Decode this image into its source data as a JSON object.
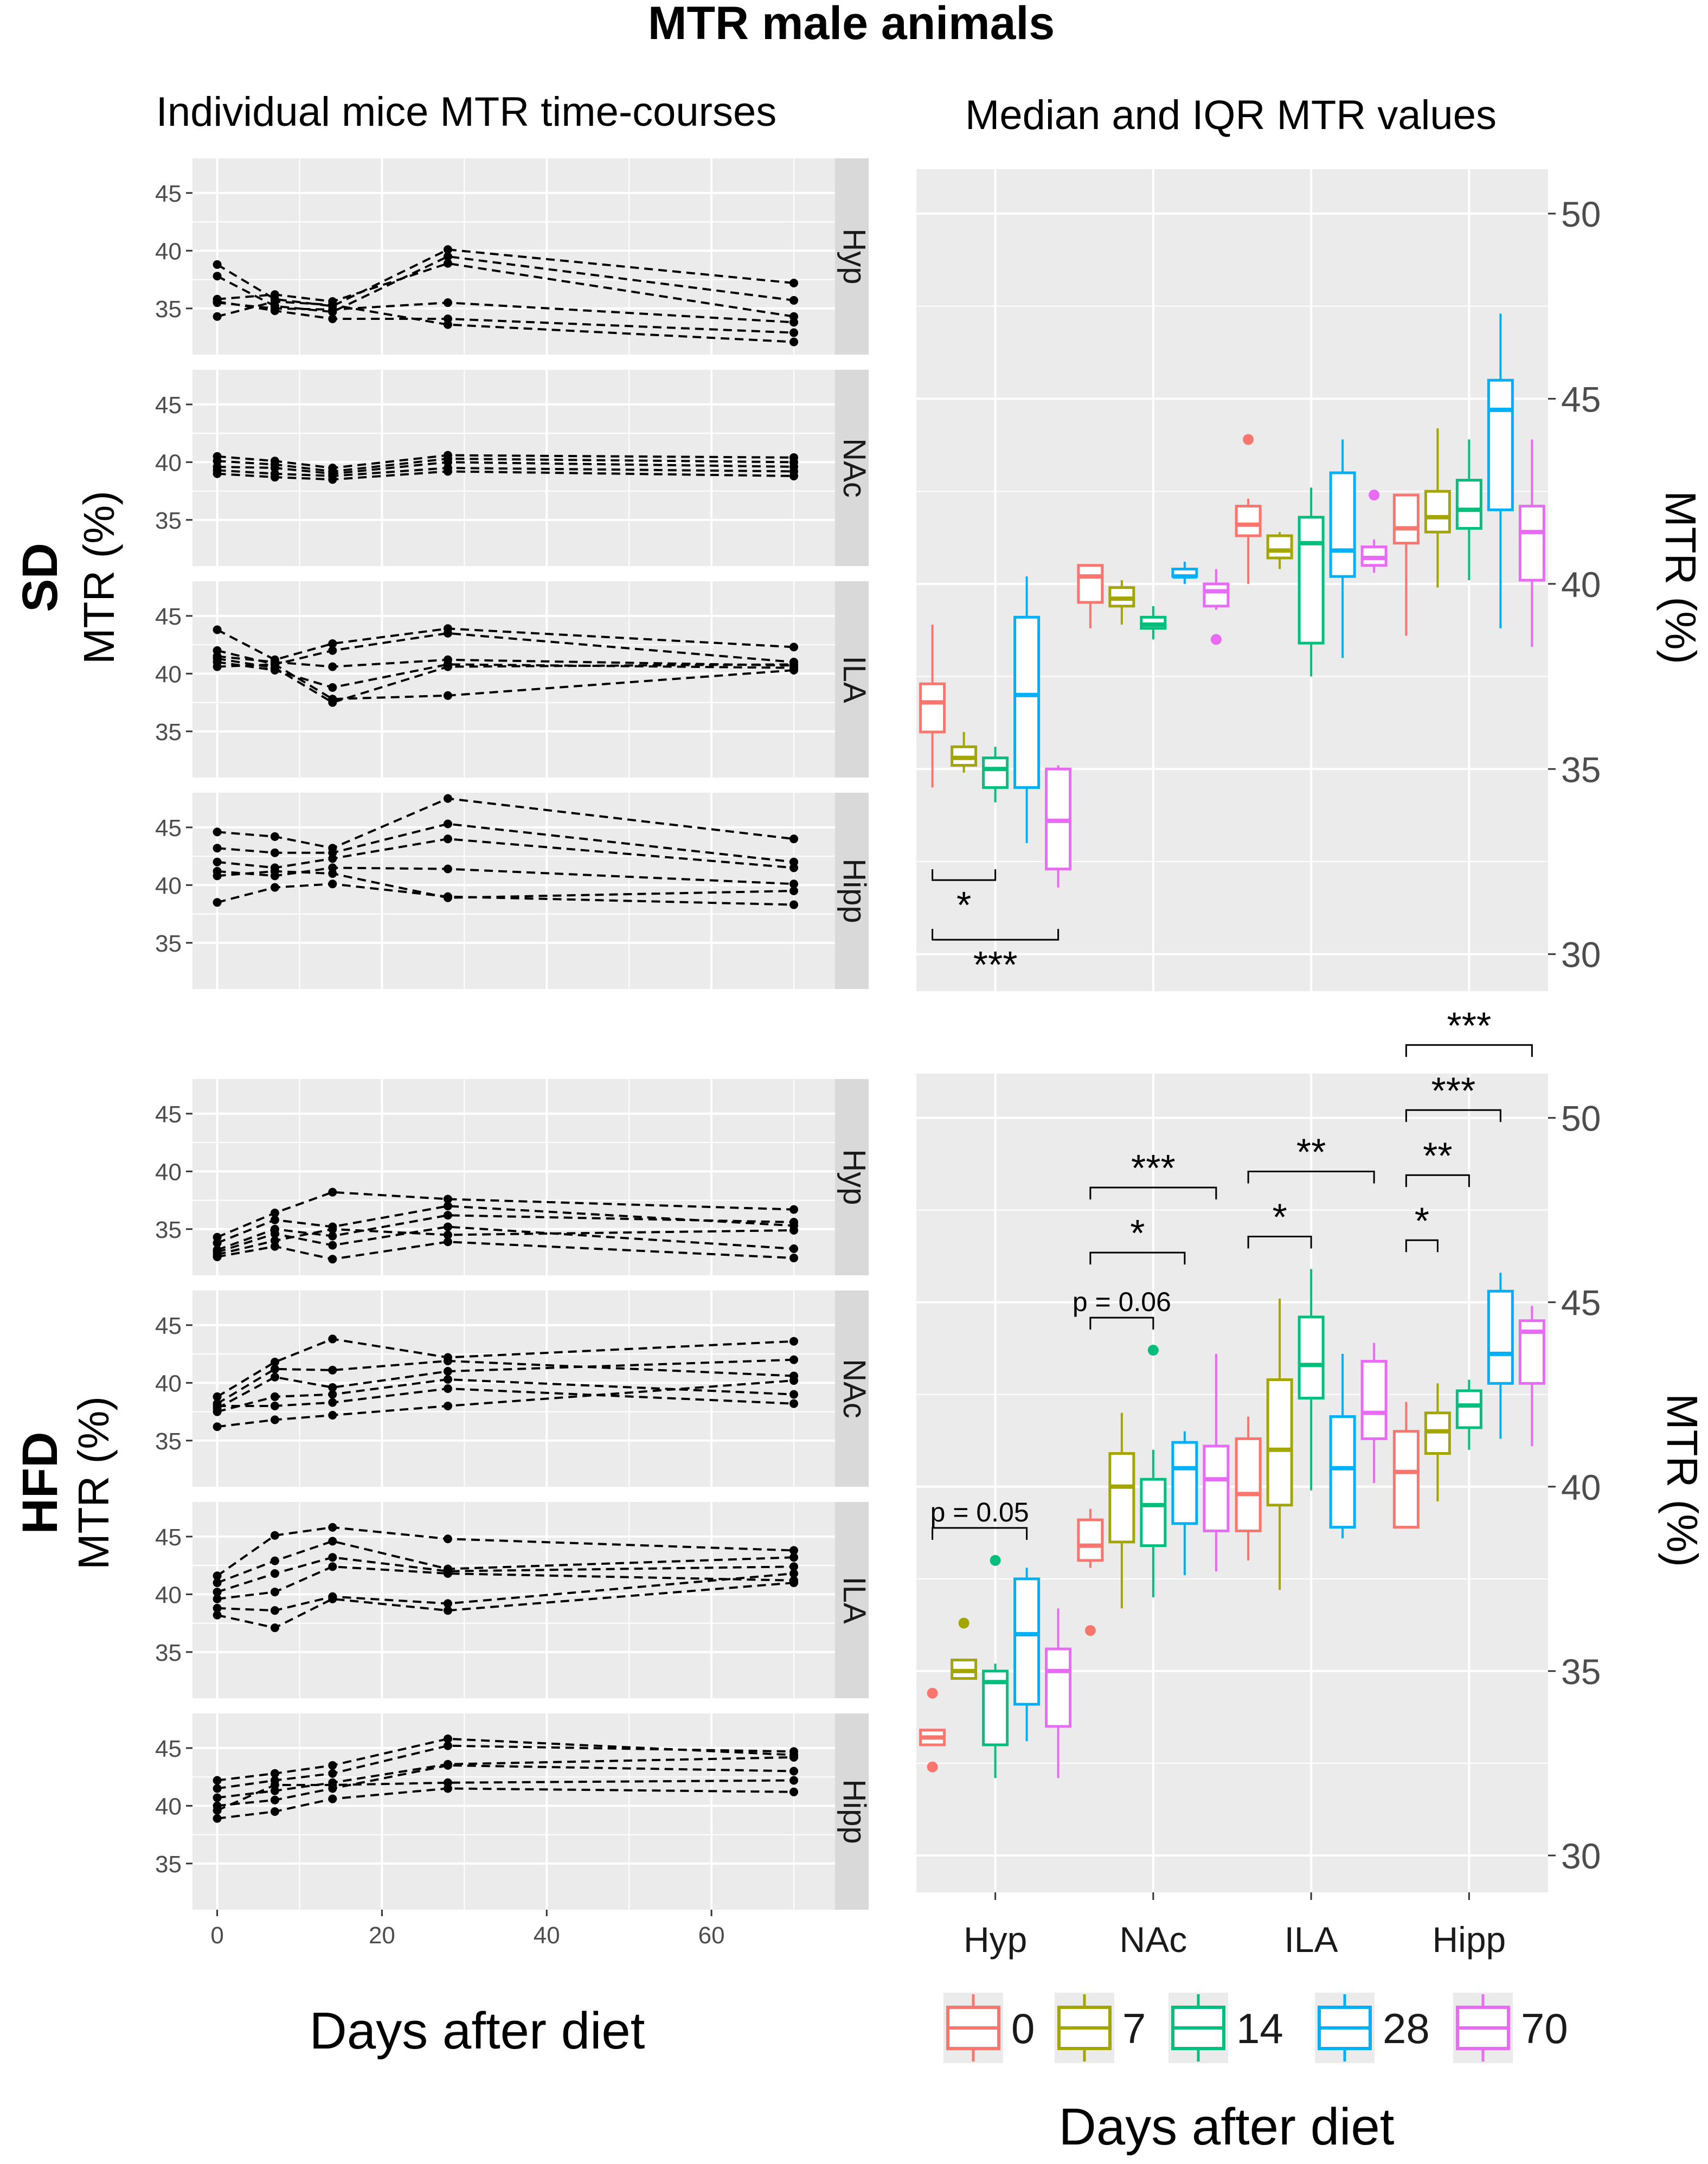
{
  "figure": {
    "title": "MTR male animals",
    "left_column_title": "Individual mice MTR time-courses",
    "right_column_title": "Median and IQR MTR values",
    "row_labels": [
      "SD",
      "HFD"
    ],
    "y_axis_label": "MTR (%)",
    "x_axis_label": "Days after diet"
  },
  "colors": {
    "0": "#F8766D",
    "7": "#A3A500",
    "14": "#00BF7D",
    "28": "#00B0F6",
    "70": "#E76BF3",
    "panel_bg": "#EBEBEB",
    "grid": "#FFFFFF"
  },
  "chart_data": [
    {
      "id": "sd-timecourses",
      "type": "line",
      "title": "Individual mice MTR time-courses",
      "group": "SD",
      "xlabel": "Days after diet",
      "ylabel": "MTR (%)",
      "xlim": [
        -3,
        75
      ],
      "ylim": [
        31,
        48
      ],
      "x_ticks": [
        0,
        20,
        40,
        60
      ],
      "y_ticks": [
        35,
        40,
        45
      ],
      "x": [
        0,
        7,
        14,
        28,
        70
      ],
      "facets": [
        {
          "region": "Hyp",
          "series": [
            [
              38.8,
              35.8,
              35.2,
              40.1,
              37.2
            ],
            [
              37.8,
              35.2,
              34.7,
              39.5,
              35.7
            ],
            [
              35.8,
              36.2,
              35.6,
              38.9,
              34.3
            ],
            [
              35.5,
              35.0,
              34.9,
              35.5,
              33.8
            ],
            [
              35.6,
              34.8,
              34.1,
              34.1,
              32.9
            ],
            [
              34.3,
              35.6,
              35.3,
              33.6,
              32.1
            ]
          ]
        },
        {
          "region": "NAc",
          "series": [
            [
              40.5,
              40.1,
              39.5,
              40.6,
              40.4
            ],
            [
              40.1,
              39.8,
              39.2,
              40.3,
              40.0
            ],
            [
              39.6,
              39.5,
              39.0,
              40.0,
              39.6
            ],
            [
              39.3,
              39.0,
              38.8,
              39.5,
              39.2
            ],
            [
              39.0,
              38.7,
              38.5,
              39.2,
              38.8
            ]
          ]
        },
        {
          "region": "ILA",
          "series": [
            [
              43.8,
              41.2,
              42.6,
              43.9,
              42.3
            ],
            [
              42.0,
              40.8,
              42.0,
              43.5,
              41.0
            ],
            [
              41.5,
              41.0,
              40.6,
              41.2,
              40.7
            ],
            [
              41.0,
              40.3,
              38.8,
              40.8,
              40.5
            ],
            [
              40.6,
              40.8,
              37.8,
              38.1,
              40.3
            ],
            [
              41.3,
              40.5,
              37.5,
              40.6,
              40.8
            ]
          ]
        },
        {
          "region": "Hipp",
          "series": [
            [
              44.6,
              44.2,
              43.2,
              47.5,
              44.0
            ],
            [
              43.2,
              42.8,
              42.8,
              45.3,
              42.0
            ],
            [
              42.0,
              41.5,
              42.3,
              44.0,
              41.5
            ],
            [
              41.2,
              40.8,
              41.5,
              41.4,
              40.1
            ],
            [
              40.8,
              41.2,
              41.0,
              38.9,
              39.5
            ],
            [
              38.5,
              39.8,
              40.1,
              39.0,
              38.3
            ]
          ]
        }
      ]
    },
    {
      "id": "hfd-timecourses",
      "type": "line",
      "title": "Individual mice MTR time-courses",
      "group": "HFD",
      "xlabel": "Days after diet",
      "ylabel": "MTR (%)",
      "xlim": [
        -3,
        75
      ],
      "ylim": [
        31,
        48
      ],
      "x_ticks": [
        0,
        20,
        40,
        60
      ],
      "y_ticks": [
        35,
        40,
        45
      ],
      "x": [
        0,
        7,
        14,
        28,
        70
      ],
      "facets": [
        {
          "region": "Hyp",
          "series": [
            [
              34.3,
              36.4,
              38.2,
              37.6,
              36.7
            ],
            [
              33.8,
              35.8,
              35.2,
              37.0,
              35.3
            ],
            [
              33.2,
              35.0,
              34.4,
              36.2,
              35.6
            ],
            [
              32.8,
              34.0,
              35.0,
              34.5,
              34.9
            ],
            [
              33.0,
              34.6,
              33.6,
              35.2,
              33.3
            ],
            [
              32.6,
              33.5,
              32.4,
              33.9,
              32.5
            ]
          ]
        },
        {
          "region": "NAc",
          "series": [
            [
              38.8,
              41.8,
              43.8,
              42.2,
              43.6
            ],
            [
              38.2,
              41.2,
              41.1,
              41.9,
              40.6
            ],
            [
              37.8,
              40.5,
              39.6,
              41.0,
              42.0
            ],
            [
              37.5,
              38.8,
              39.0,
              40.3,
              39.0
            ],
            [
              38.0,
              38.0,
              38.3,
              39.5,
              38.2
            ],
            [
              36.2,
              36.8,
              37.2,
              38.0,
              40.2
            ]
          ]
        },
        {
          "region": "ILA",
          "series": [
            [
              41.6,
              45.1,
              45.8,
              44.8,
              43.8
            ],
            [
              41.0,
              42.9,
              44.6,
              42.2,
              43.2
            ],
            [
              40.2,
              41.8,
              43.2,
              42.0,
              42.4
            ],
            [
              39.6,
              40.2,
              42.4,
              41.8,
              41.2
            ],
            [
              38.8,
              38.6,
              39.8,
              39.2,
              41.8
            ],
            [
              38.2,
              37.1,
              39.6,
              38.6,
              41.0
            ]
          ]
        },
        {
          "region": "Hipp",
          "series": [
            [
              42.2,
              42.8,
              43.5,
              45.8,
              44.4
            ],
            [
              41.5,
              42.2,
              42.8,
              45.2,
              44.7
            ],
            [
              40.7,
              41.3,
              42.0,
              43.6,
              44.2
            ],
            [
              40.0,
              40.5,
              41.5,
              43.5,
              43.0
            ],
            [
              39.6,
              41.8,
              41.8,
              42.0,
              42.2
            ],
            [
              38.9,
              39.5,
              40.6,
              41.5,
              41.2
            ]
          ]
        }
      ]
    },
    {
      "id": "sd-boxplot",
      "type": "box",
      "title": "Median and IQR MTR values",
      "group": "SD",
      "ylabel": "MTR (%)",
      "ylim": [
        29,
        51.2
      ],
      "y_ticks": [
        30,
        35,
        40,
        45,
        50
      ],
      "categories": [
        "Hyp",
        "NAc",
        "ILA",
        "Hipp"
      ],
      "legend_title": "Days after diet",
      "series": [
        {
          "name": "0",
          "boxes": [
            {
              "min": 34.5,
              "q1": 36.0,
              "median": 36.8,
              "q3": 37.3,
              "max": 38.9,
              "outliers": []
            },
            {
              "min": 38.8,
              "q1": 39.5,
              "median": 40.2,
              "q3": 40.5,
              "max": 40.5,
              "outliers": []
            },
            {
              "min": 40.0,
              "q1": 41.3,
              "median": 41.6,
              "q3": 42.1,
              "max": 42.3,
              "outliers": [
                43.9
              ]
            },
            {
              "min": 38.6,
              "q1": 41.1,
              "median": 41.5,
              "q3": 42.4,
              "max": 42.4,
              "outliers": []
            }
          ]
        },
        {
          "name": "7",
          "boxes": [
            {
              "min": 34.9,
              "q1": 35.1,
              "median": 35.3,
              "q3": 35.6,
              "max": 36.0,
              "outliers": []
            },
            {
              "min": 38.9,
              "q1": 39.4,
              "median": 39.6,
              "q3": 39.9,
              "max": 40.1,
              "outliers": []
            },
            {
              "min": 40.4,
              "q1": 40.7,
              "median": 40.9,
              "q3": 41.3,
              "max": 41.4,
              "outliers": []
            },
            {
              "min": 39.9,
              "q1": 41.4,
              "median": 41.8,
              "q3": 42.5,
              "max": 44.2,
              "outliers": []
            }
          ]
        },
        {
          "name": "14",
          "boxes": [
            {
              "min": 34.1,
              "q1": 34.5,
              "median": 35.0,
              "q3": 35.3,
              "max": 35.6,
              "outliers": []
            },
            {
              "min": 38.5,
              "q1": 38.8,
              "median": 38.9,
              "q3": 39.1,
              "max": 39.4,
              "outliers": []
            },
            {
              "min": 37.5,
              "q1": 38.4,
              "median": 41.1,
              "q3": 41.8,
              "max": 42.6,
              "outliers": []
            },
            {
              "min": 40.1,
              "q1": 41.5,
              "median": 42.0,
              "q3": 42.8,
              "max": 43.9,
              "outliers": []
            }
          ]
        },
        {
          "name": "28",
          "boxes": [
            {
              "min": 33.0,
              "q1": 34.5,
              "median": 37.0,
              "q3": 39.1,
              "max": 40.2,
              "outliers": []
            },
            {
              "min": 40.0,
              "q1": 40.2,
              "median": 40.2,
              "q3": 40.4,
              "max": 40.6,
              "outliers": []
            },
            {
              "min": 38.0,
              "q1": 40.2,
              "median": 40.9,
              "q3": 43.0,
              "max": 43.9,
              "outliers": []
            },
            {
              "min": 38.8,
              "q1": 42.0,
              "median": 44.7,
              "q3": 45.5,
              "max": 47.3,
              "outliers": []
            }
          ]
        },
        {
          "name": "70",
          "boxes": [
            {
              "min": 31.8,
              "q1": 32.3,
              "median": 33.6,
              "q3": 35.0,
              "max": 35.1,
              "outliers": []
            },
            {
              "min": 39.3,
              "q1": 39.4,
              "median": 39.8,
              "q3": 40.0,
              "max": 40.4,
              "outliers": [
                38.5
              ]
            },
            {
              "min": 40.3,
              "q1": 40.5,
              "median": 40.7,
              "q3": 41.0,
              "max": 41.2,
              "outliers": [
                42.4
              ]
            },
            {
              "min": 38.3,
              "q1": 40.1,
              "median": 41.4,
              "q3": 42.1,
              "max": 43.9,
              "outliers": []
            }
          ]
        }
      ],
      "annotations": [
        {
          "region": "Hyp",
          "from": "0",
          "to": "14",
          "label": "*"
        },
        {
          "region": "Hyp",
          "from": "0",
          "to": "70",
          "label": "***"
        }
      ]
    },
    {
      "id": "hfd-boxplot",
      "type": "box",
      "title": "Median and IQR MTR values",
      "group": "HFD",
      "ylabel": "MTR (%)",
      "ylim": [
        29,
        51.2
      ],
      "y_ticks": [
        30,
        35,
        40,
        45,
        50
      ],
      "categories": [
        "Hyp",
        "NAc",
        "ILA",
        "Hipp"
      ],
      "legend_title": "Days after diet",
      "series": [
        {
          "name": "0",
          "boxes": [
            {
              "min": 33.0,
              "q1": 33.0,
              "median": 33.2,
              "q3": 33.4,
              "max": 33.4,
              "outliers": [
                34.4,
                32.4
              ]
            },
            {
              "min": 37.8,
              "q1": 38.0,
              "median": 38.4,
              "q3": 39.1,
              "max": 39.4,
              "outliers": [
                36.1
              ]
            },
            {
              "min": 38.0,
              "q1": 38.8,
              "median": 39.8,
              "q3": 41.3,
              "max": 41.9,
              "outliers": []
            },
            {
              "min": 38.9,
              "q1": 38.9,
              "median": 40.4,
              "q3": 41.5,
              "max": 42.3,
              "outliers": []
            }
          ]
        },
        {
          "name": "7",
          "boxes": [
            {
              "min": 34.8,
              "q1": 34.8,
              "median": 35.0,
              "q3": 35.3,
              "max": 35.3,
              "outliers": [
                36.3
              ]
            },
            {
              "min": 36.7,
              "q1": 38.5,
              "median": 40.0,
              "q3": 40.9,
              "max": 42.0,
              "outliers": []
            },
            {
              "min": 37.2,
              "q1": 39.5,
              "median": 41.0,
              "q3": 42.9,
              "max": 45.1,
              "outliers": []
            },
            {
              "min": 39.6,
              "q1": 40.9,
              "median": 41.5,
              "q3": 42.0,
              "max": 42.8,
              "outliers": []
            }
          ]
        },
        {
          "name": "14",
          "boxes": [
            {
              "min": 32.1,
              "q1": 33.0,
              "median": 34.7,
              "q3": 35.0,
              "max": 35.2,
              "outliers": [
                38.0
              ]
            },
            {
              "min": 37.0,
              "q1": 38.4,
              "median": 39.5,
              "q3": 40.2,
              "max": 41.0,
              "outliers": [
                43.7
              ]
            },
            {
              "min": 39.9,
              "q1": 42.4,
              "median": 43.3,
              "q3": 44.6,
              "max": 45.9,
              "outliers": []
            },
            {
              "min": 41.0,
              "q1": 41.6,
              "median": 42.2,
              "q3": 42.6,
              "max": 42.9,
              "outliers": []
            }
          ]
        },
        {
          "name": "28",
          "boxes": [
            {
              "min": 33.1,
              "q1": 34.1,
              "median": 36.0,
              "q3": 37.5,
              "max": 37.8,
              "outliers": []
            },
            {
              "min": 37.6,
              "q1": 39.0,
              "median": 40.5,
              "q3": 41.2,
              "max": 41.5,
              "outliers": []
            },
            {
              "min": 38.6,
              "q1": 38.9,
              "median": 40.5,
              "q3": 41.9,
              "max": 43.6,
              "outliers": []
            },
            {
              "min": 41.3,
              "q1": 42.8,
              "median": 43.6,
              "q3": 45.3,
              "max": 45.8,
              "outliers": []
            }
          ]
        },
        {
          "name": "70",
          "boxes": [
            {
              "min": 32.1,
              "q1": 33.5,
              "median": 35.0,
              "q3": 35.6,
              "max": 36.7,
              "outliers": []
            },
            {
              "min": 37.7,
              "q1": 38.8,
              "median": 40.2,
              "q3": 41.1,
              "max": 43.6,
              "outliers": []
            },
            {
              "min": 40.1,
              "q1": 41.3,
              "median": 42.0,
              "q3": 43.4,
              "max": 43.9,
              "outliers": []
            },
            {
              "min": 41.1,
              "q1": 42.8,
              "median": 44.2,
              "q3": 44.5,
              "max": 44.9,
              "outliers": []
            }
          ]
        }
      ],
      "annotations": [
        {
          "region": "Hyp",
          "from": "0",
          "to": "28",
          "label": "p = 0.05"
        },
        {
          "region": "NAc",
          "from": "0",
          "to": "14",
          "label": "p = 0.06"
        },
        {
          "region": "NAc",
          "from": "0",
          "to": "28",
          "label": "*"
        },
        {
          "region": "NAc",
          "from": "0",
          "to": "70",
          "label": "***"
        },
        {
          "region": "ILA",
          "from": "0",
          "to": "14",
          "label": "*"
        },
        {
          "region": "ILA",
          "from": "0",
          "to": "70",
          "label": "**"
        },
        {
          "region": "Hipp",
          "from": "0",
          "to": "7",
          "label": "*"
        },
        {
          "region": "Hipp",
          "from": "0",
          "to": "14",
          "label": "**"
        },
        {
          "region": "Hipp",
          "from": "0",
          "to": "28",
          "label": "***"
        },
        {
          "region": "Hipp",
          "from": "0",
          "to": "70",
          "label": "***"
        }
      ]
    }
  ]
}
